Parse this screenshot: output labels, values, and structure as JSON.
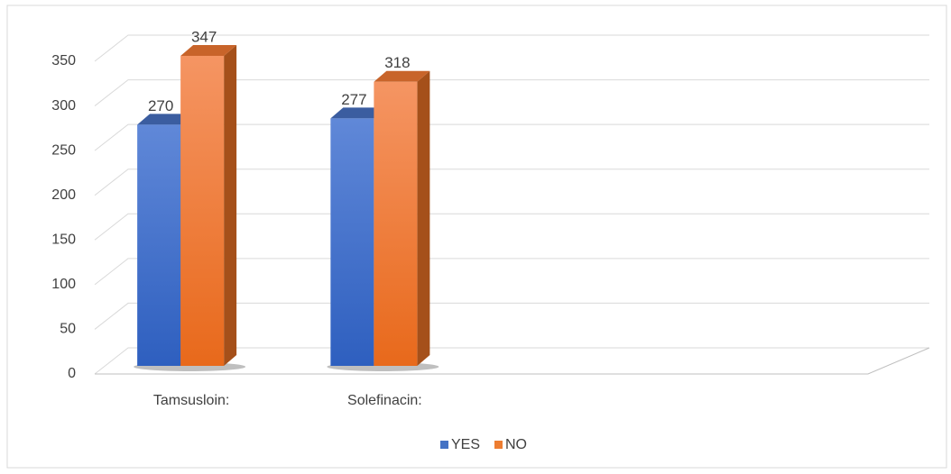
{
  "chart_data": {
    "type": "bar3d",
    "categories": [
      "Tamsusloin:",
      "Solefinacin:",
      null,
      null
    ],
    "series": [
      {
        "name": "YES",
        "color": "#4472c4",
        "values": [
          270,
          277,
          null,
          null
        ]
      },
      {
        "name": "NO",
        "color": "#ed7d31",
        "values": [
          347,
          318,
          null,
          null
        ]
      }
    ],
    "ylim": [
      0,
      350
    ],
    "yticks": [
      0,
      50,
      100,
      150,
      200,
      250,
      300,
      350
    ],
    "grid": true,
    "legend": "bottom"
  }
}
